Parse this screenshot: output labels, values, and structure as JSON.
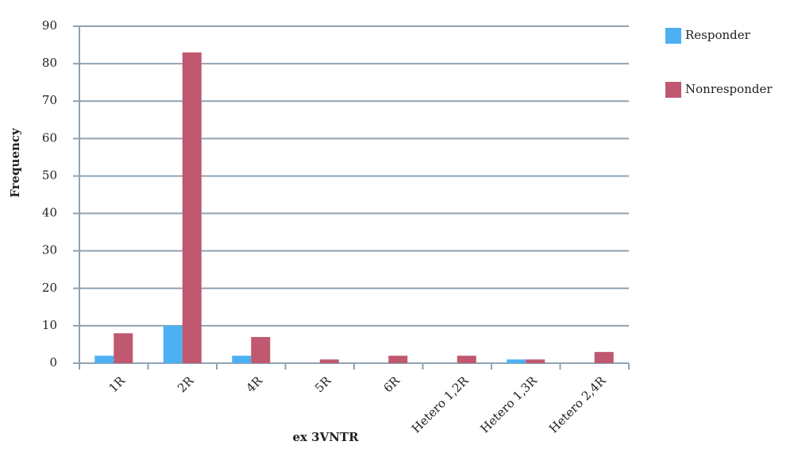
{
  "chart_data": {
    "type": "bar",
    "x_label": "ex 3VNTR",
    "y_label": "Frequency",
    "categories": [
      "1R",
      "2R",
      "4R",
      "5R",
      "6R",
      "Hetero 1,2R",
      "Hetero 1,3R",
      "Hetero 2,4R"
    ],
    "series": [
      {
        "name": "Responder",
        "color": "#4db0f2",
        "values": [
          2,
          10,
          2,
          0,
          0,
          0,
          1,
          0
        ]
      },
      {
        "name": "Nonresponder",
        "color": "#c05870",
        "values": [
          8,
          83,
          7,
          1,
          2,
          2,
          1,
          3
        ]
      }
    ],
    "ylim": [
      0,
      90
    ],
    "yticks": [
      0,
      10,
      20,
      30,
      40,
      50,
      60,
      70,
      80,
      90
    ],
    "grid": true,
    "legend": "right"
  }
}
